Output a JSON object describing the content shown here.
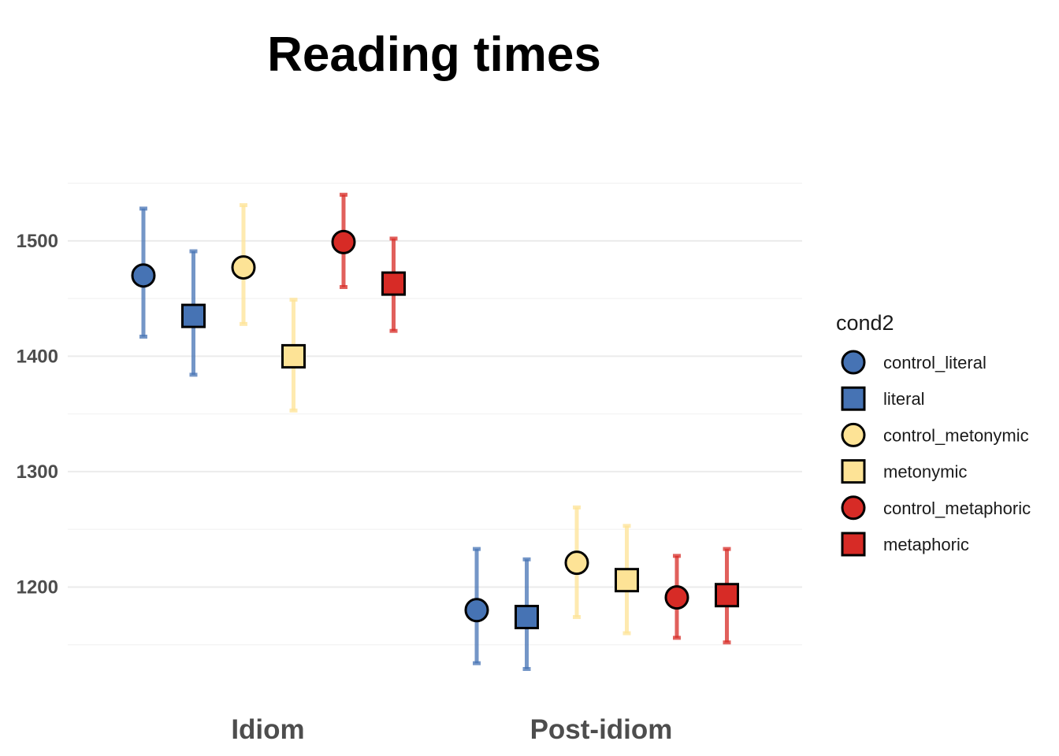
{
  "chart_data": {
    "type": "scatter",
    "title": "Reading times",
    "xlabel": "",
    "ylabel": "",
    "categories": [
      "Idiom",
      "Post-idiom"
    ],
    "ylim": [
      1115,
      1575
    ],
    "yticks": [
      1200,
      1300,
      1400,
      1500
    ],
    "grid": true,
    "legend": {
      "title": "cond2",
      "position": "right"
    },
    "series": [
      {
        "name": "control_literal",
        "shape": "circle",
        "color": "#4673b4",
        "values": [
          1470,
          1180
        ],
        "lower": [
          1417,
          1134
        ],
        "upper": [
          1528,
          1233
        ]
      },
      {
        "name": "literal",
        "shape": "square",
        "color": "#4673b4",
        "values": [
          1435,
          1174
        ],
        "lower": [
          1384,
          1129
        ],
        "upper": [
          1491,
          1224
        ]
      },
      {
        "name": "control_metonymic",
        "shape": "circle",
        "color": "#fde396",
        "values": [
          1477,
          1221
        ],
        "lower": [
          1428,
          1174
        ],
        "upper": [
          1531,
          1269
        ]
      },
      {
        "name": "metonymic",
        "shape": "square",
        "color": "#fde396",
        "values": [
          1400,
          1206
        ],
        "lower": [
          1353,
          1160
        ],
        "upper": [
          1449,
          1253
        ]
      },
      {
        "name": "control_metaphoric",
        "shape": "circle",
        "color": "#d72b26",
        "values": [
          1499,
          1191
        ],
        "lower": [
          1460,
          1156
        ],
        "upper": [
          1540,
          1227
        ]
      },
      {
        "name": "metaphoric",
        "shape": "square",
        "color": "#d72b26",
        "values": [
          1463,
          1193
        ],
        "lower": [
          1422,
          1152
        ],
        "upper": [
          1502,
          1233
        ]
      }
    ]
  }
}
